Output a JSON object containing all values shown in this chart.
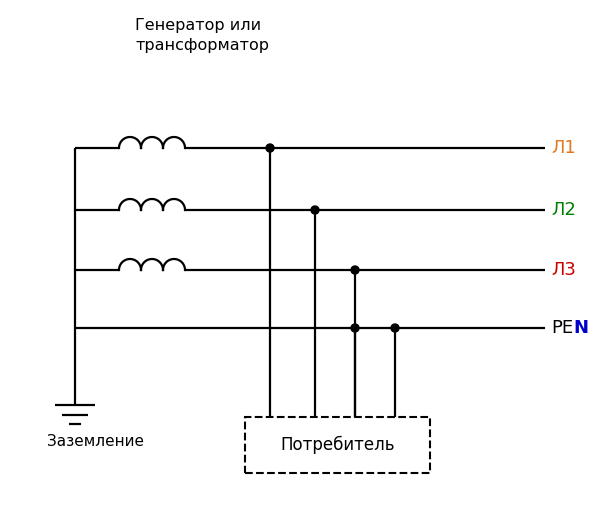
{
  "title_line1": "Генератор или",
  "title_line2": "трансформатор",
  "label_L1": "Л1",
  "label_L2": "Л2",
  "label_L3": "Л3",
  "label_PEN_PE": "PE",
  "label_PEN_N": "N",
  "label_ground": "Заземление",
  "label_consumer": "Потребитель",
  "color_L1": "#e07820",
  "color_L2": "#008000",
  "color_L3": "#cc0000",
  "color_PEN": "#000000",
  "color_PEN_N": "#0000cc",
  "background": "#ffffff",
  "line_color": "#000000",
  "line_width": 1.6
}
